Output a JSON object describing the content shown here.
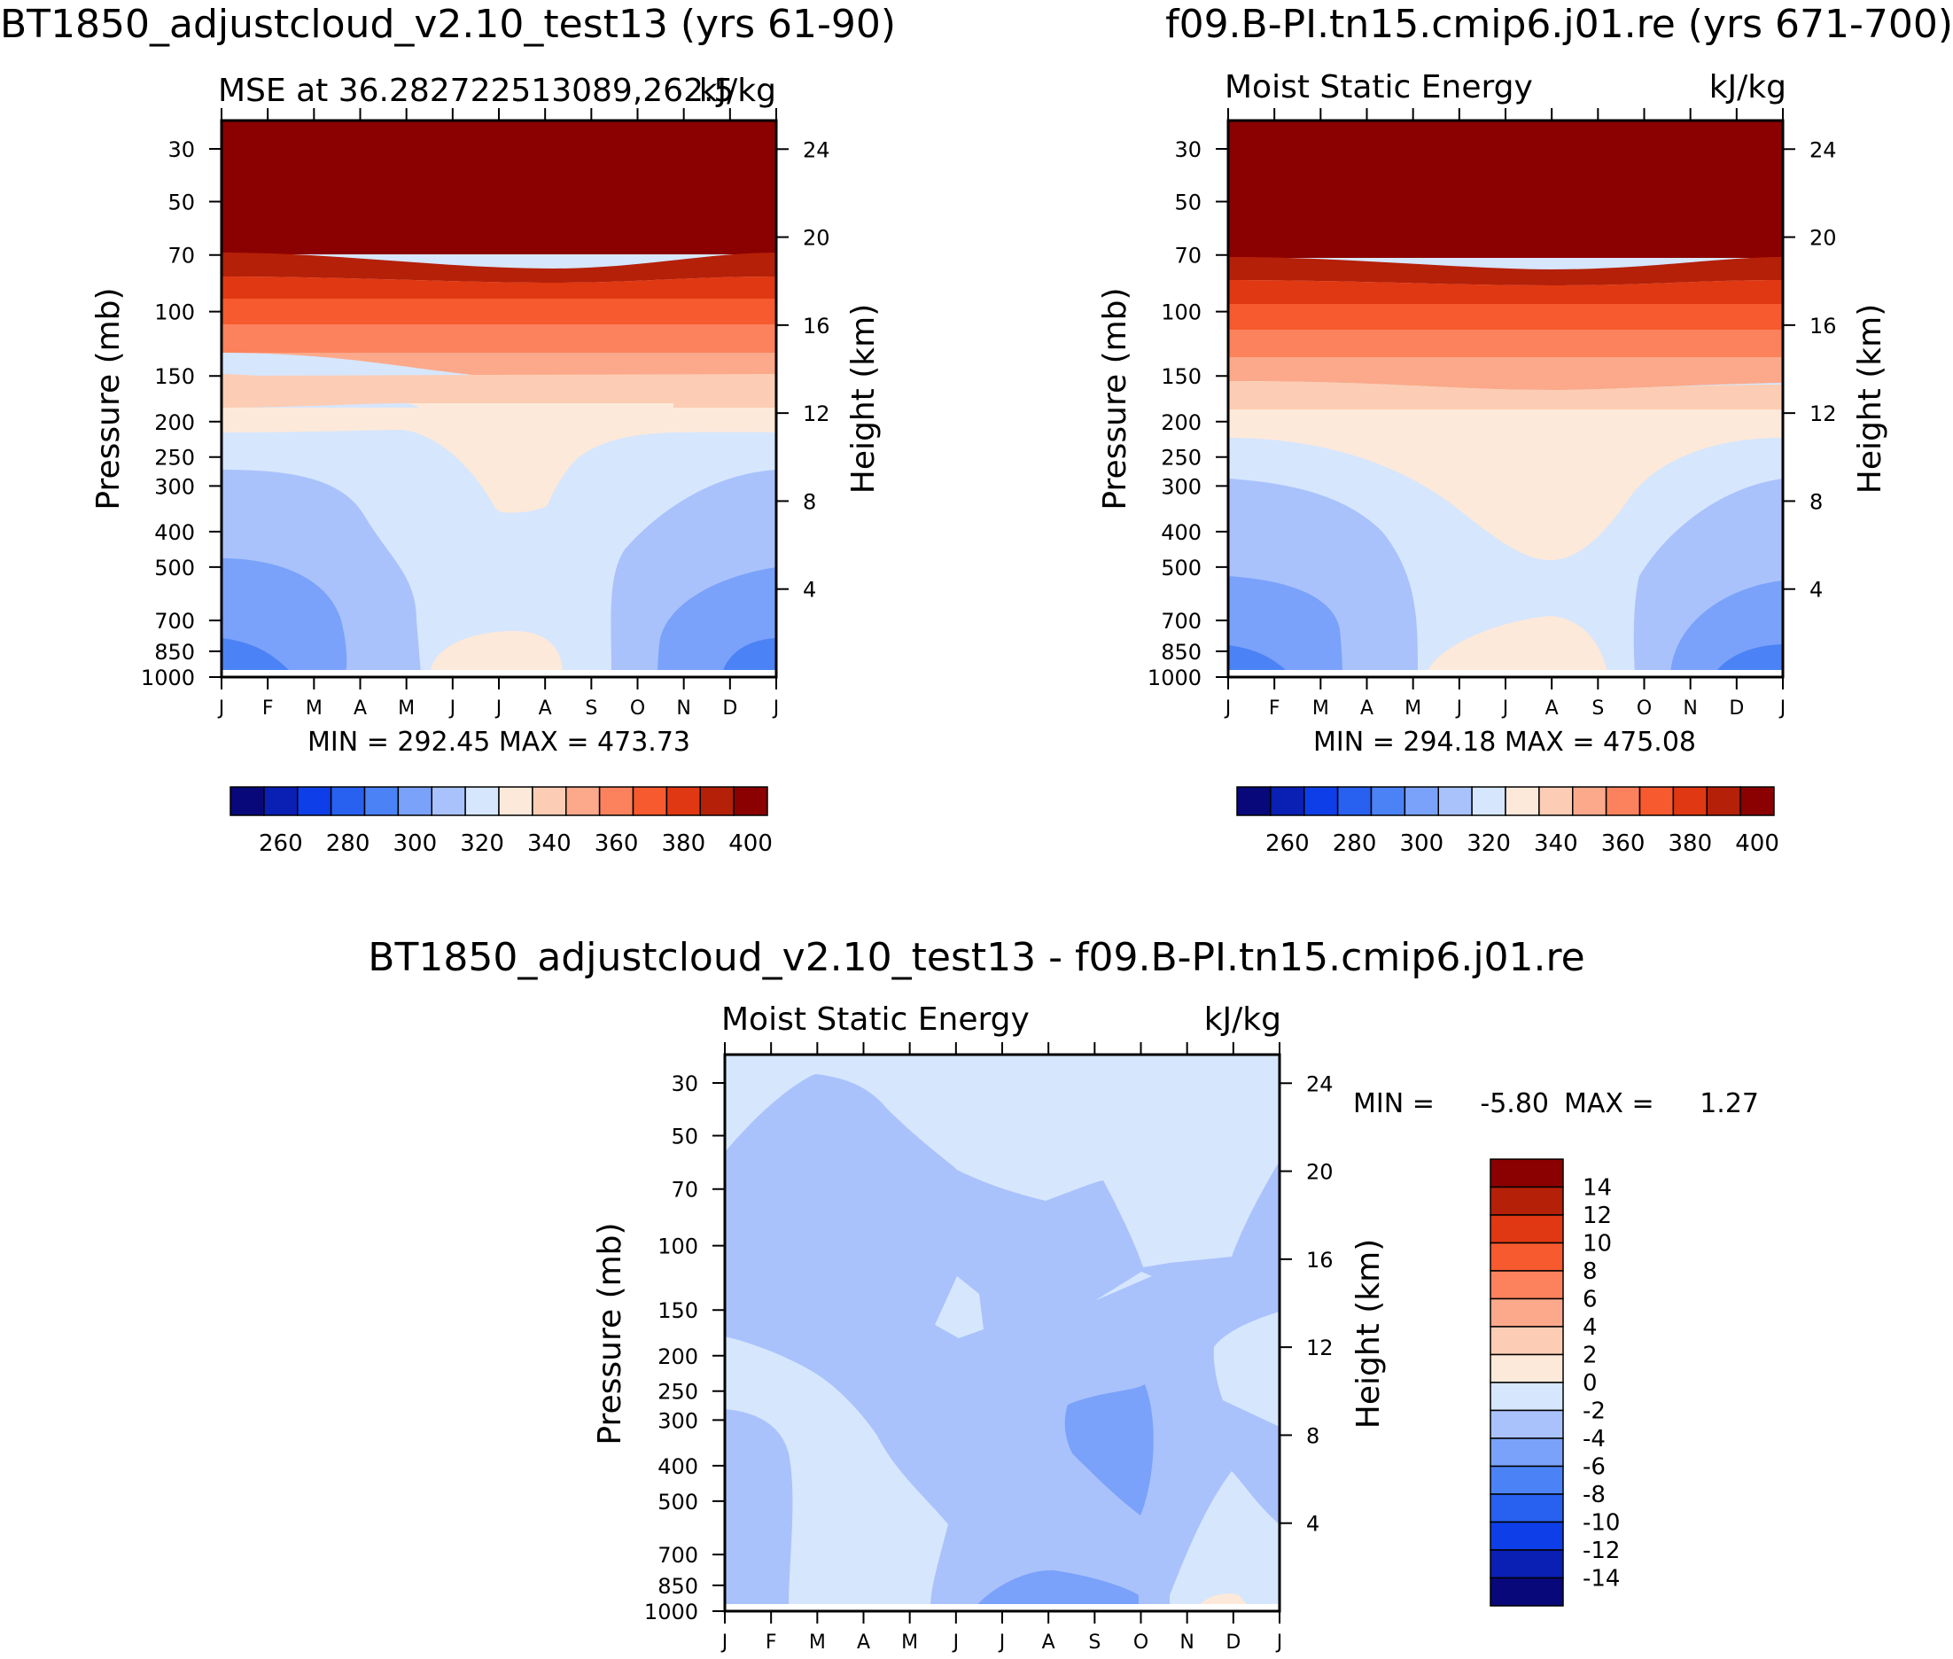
{
  "chart_data": [
    {
      "type": "contour",
      "title": "BT1850_adjustcloud_v2.10_test13 (yrs 61-90)",
      "subtitle_left": "MSE at 36.282722513089,262.5",
      "subtitle_right": "kJ/kg",
      "xlabel": "",
      "ylabel": "Pressure (mb)",
      "ylabel_right": "Height (km)",
      "x_ticks": [
        "J",
        "F",
        "M",
        "A",
        "M",
        "J",
        "J",
        "A",
        "S",
        "O",
        "N",
        "D",
        "J"
      ],
      "pressure_ticks": [
        30,
        50,
        70,
        100,
        150,
        200,
        250,
        300,
        400,
        500,
        700,
        850,
        1000
      ],
      "height_ticks": [
        24,
        20,
        16,
        12,
        8,
        4
      ],
      "stats": "MIN = 292.45 MAX = 473.73",
      "colorbar_labels": [
        "260",
        "280",
        "300",
        "320",
        "340",
        "360",
        "380",
        "400"
      ],
      "colors": [
        "#08087a",
        "#0a1fb4",
        "#0e3ee8",
        "#2860f0",
        "#4b82f6",
        "#7aa2fa",
        "#a9c2fc",
        "#d6e6fd",
        "#fde9d9",
        "#fccdb4",
        "#fba98a",
        "#fb825c",
        "#f65a2e",
        "#e03812",
        "#b52008",
        "#8b0000"
      ]
    },
    {
      "type": "contour",
      "title": "f09.B-PI.tn15.cmip6.j01.re (yrs 671-700)",
      "subtitle_left": "Moist Static Energy",
      "subtitle_right": "kJ/kg",
      "xlabel": "",
      "ylabel": "Pressure (mb)",
      "ylabel_right": "Height (km)",
      "x_ticks": [
        "J",
        "F",
        "M",
        "A",
        "M",
        "J",
        "J",
        "A",
        "S",
        "O",
        "N",
        "D",
        "J"
      ],
      "pressure_ticks": [
        30,
        50,
        70,
        100,
        150,
        200,
        250,
        300,
        400,
        500,
        700,
        850,
        1000
      ],
      "height_ticks": [
        24,
        20,
        16,
        12,
        8,
        4
      ],
      "stats": "MIN = 294.18 MAX = 475.08",
      "colorbar_labels": [
        "260",
        "280",
        "300",
        "320",
        "340",
        "360",
        "380",
        "400"
      ],
      "colors": [
        "#08087a",
        "#0a1fb4",
        "#0e3ee8",
        "#2860f0",
        "#4b82f6",
        "#7aa2fa",
        "#a9c2fc",
        "#d6e6fd",
        "#fde9d9",
        "#fccdb4",
        "#fba98a",
        "#fb825c",
        "#f65a2e",
        "#e03812",
        "#b52008",
        "#8b0000"
      ]
    },
    {
      "type": "contour",
      "title": "BT1850_adjustcloud_v2.10_test13 - f09.B-PI.tn15.cmip6.j01.re",
      "subtitle_left": "Moist Static Energy",
      "subtitle_right": "kJ/kg",
      "xlabel": "",
      "ylabel": "Pressure (mb)",
      "ylabel_right": "Height (km)",
      "x_ticks": [
        "J",
        "F",
        "M",
        "A",
        "M",
        "J",
        "J",
        "A",
        "S",
        "O",
        "N",
        "D",
        "J"
      ],
      "pressure_ticks": [
        30,
        50,
        70,
        100,
        150,
        200,
        250,
        300,
        400,
        500,
        700,
        850,
        1000
      ],
      "height_ticks": [
        24,
        20,
        16,
        12,
        8,
        4
      ],
      "stats_min_label": "MIN =",
      "stats_min": "-5.80",
      "stats_max_label": "MAX =",
      "stats_max": "1.27",
      "colorbar_labels": [
        "14",
        "12",
        "10",
        "8",
        "6",
        "4",
        "2",
        "0",
        "-2",
        "-4",
        "-6",
        "-8",
        "-10",
        "-12",
        "-14"
      ],
      "colors": [
        "#8b0000",
        "#b52008",
        "#e03812",
        "#f65a2e",
        "#fb825c",
        "#fba98a",
        "#fccdb4",
        "#fde9d9",
        "#d6e6fd",
        "#a9c2fc",
        "#7aa2fa",
        "#4b82f6",
        "#2860f0",
        "#0e3ee8",
        "#0a1fb4",
        "#08087a"
      ]
    }
  ]
}
